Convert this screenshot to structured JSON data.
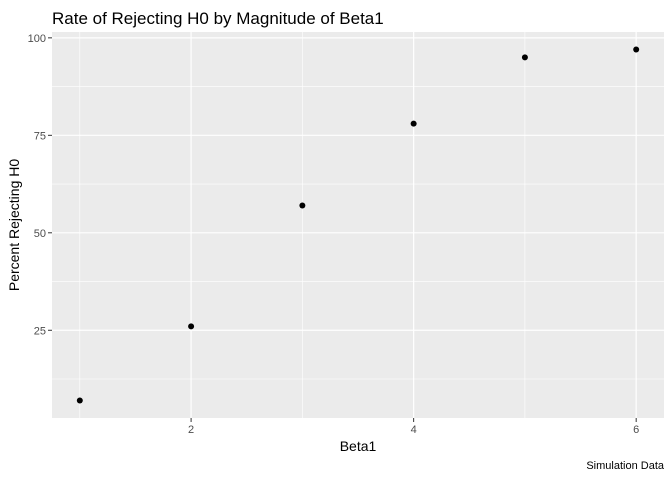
{
  "chart_data": {
    "type": "scatter",
    "title": "Rate of Rejecting H0 by Magnitude of Beta1",
    "xlabel": "Beta1",
    "ylabel": "Percent Rejecting H0",
    "caption": "Simulation Data",
    "xlim": [
      0.75,
      6.25
    ],
    "ylim": [
      2.5,
      101.5
    ],
    "x_ticks": [
      2,
      4,
      6
    ],
    "y_ticks": [
      25,
      50,
      75,
      100
    ],
    "x": [
      1,
      2,
      3,
      4,
      5,
      6
    ],
    "y": [
      7,
      26,
      57,
      78,
      95,
      97
    ],
    "grid": true,
    "point_color": "#000000",
    "panel_color": "#ebebeb",
    "grid_color": "#ffffff"
  }
}
